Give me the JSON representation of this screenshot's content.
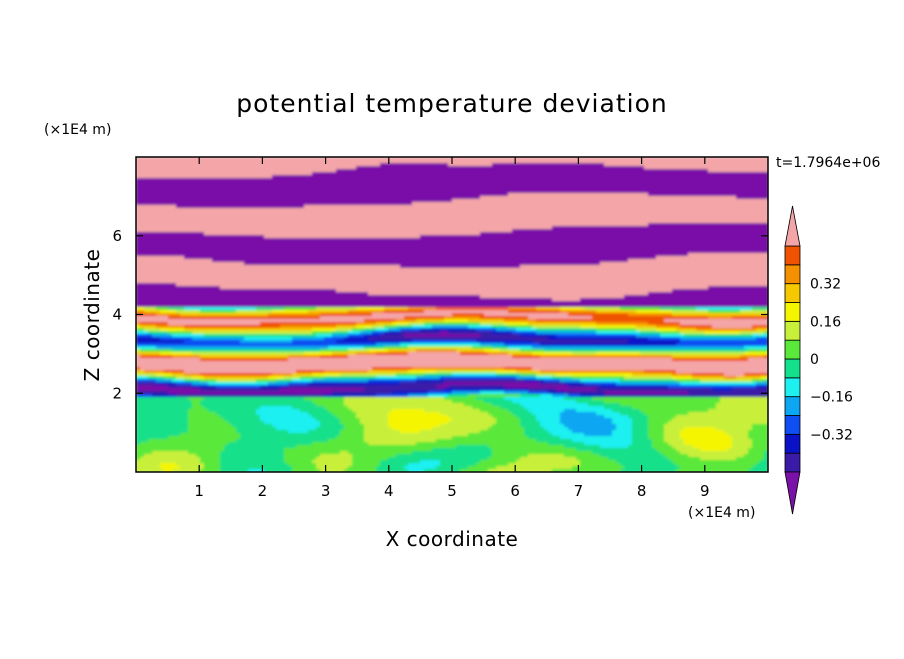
{
  "chart_data": {
    "type": "heatmap",
    "title": "potential temperature deviation",
    "xlabel": "X coordinate",
    "ylabel": "Z coordinate",
    "x_unit": "(×1E4 m)",
    "y_unit": "(×1E4 m)",
    "time_label": "t=1.7964e+06",
    "xlim": [
      0,
      10
    ],
    "ylim": [
      0,
      8
    ],
    "x_ticks": [
      1,
      2,
      3,
      4,
      5,
      6,
      7,
      8,
      9
    ],
    "y_ticks": [
      2,
      4,
      6
    ],
    "colorbar": {
      "levels": [
        -0.48,
        -0.4,
        -0.32,
        -0.24,
        -0.16,
        -0.08,
        0,
        0.08,
        0.16,
        0.24,
        0.32,
        0.4,
        0.48
      ],
      "tick_labels": [
        "0.32",
        "0.16",
        "0",
        "−0.16",
        "−0.32"
      ],
      "tick_values": [
        0.32,
        0.16,
        0,
        -0.16,
        -0.32
      ],
      "colors": [
        "#7a11a8",
        "#3a1ba8",
        "#0a12c8",
        "#0e4ef2",
        "#0ca6f2",
        "#1ef0f0",
        "#12e08a",
        "#5ae83a",
        "#c8f03a",
        "#f5f500",
        "#f5c800",
        "#f59000",
        "#f05200",
        "#f01818",
        "#f4a5a8"
      ],
      "extend": "both"
    },
    "legend_position": "right",
    "grid": false
  }
}
